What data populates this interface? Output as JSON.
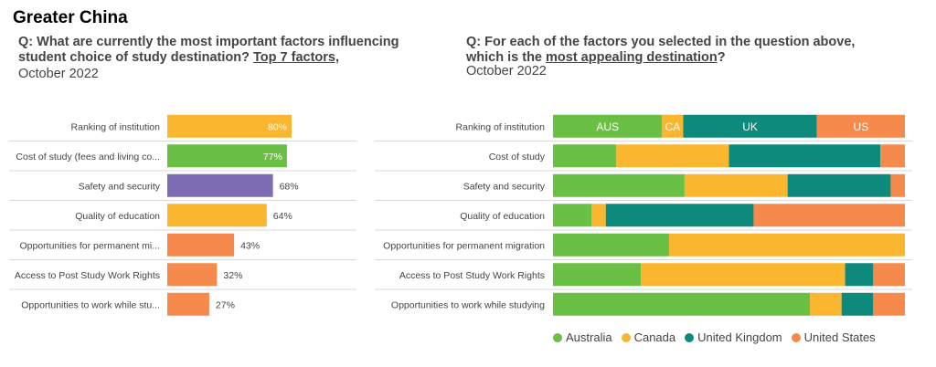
{
  "region": "Greater China",
  "q1": {
    "prefix": "Q: What are currently the most important factors influencing student choice of study destination? ",
    "underlined": "Top 7 factors,",
    "date": "October 2022"
  },
  "q2": {
    "prefix": "Q: For each of the factors you selected in the question above, which is the ",
    "underlined": "most appealing destination",
    "suffix": "?",
    "date": "October 2022"
  },
  "colors": {
    "australia": "#6abf45",
    "canada": "#fbb630",
    "uk": "#0e8a7d",
    "us": "#f68a4d",
    "purple": "#7d6bb3"
  },
  "chart_data": [
    {
      "type": "bar",
      "orientation": "horizontal",
      "categories": [
        "Ranking of institution",
        "Cost of study (fees and living co...",
        "Safety and security",
        "Quality of education",
        "Opportunities for permanent mi...",
        "Access to Post Study Work Rights",
        "Opportunities to work while stu..."
      ],
      "values": [
        80,
        77,
        68,
        64,
        43,
        32,
        27
      ],
      "value_labels": [
        "80%",
        "77%",
        "68%",
        "64%",
        "43%",
        "32%",
        "27%"
      ],
      "bar_colors": [
        "#fbb630",
        "#6abf45",
        "#7d6bb3",
        "#fbb630",
        "#f68a4d",
        "#f68a4d",
        "#f68a4d"
      ],
      "xlim": [
        0,
        100
      ]
    },
    {
      "type": "bar",
      "orientation": "horizontal",
      "stacked": "100%",
      "categories": [
        "Ranking of institution",
        "Cost of study",
        "Safety and security",
        "Quality of education",
        "Opportunities for permanent migration",
        "Access to Post Study Work Rights",
        "Opportunities to work while studying"
      ],
      "series": [
        {
          "name": "Australia",
          "short": "AUS",
          "values": [
            31,
            18,
            37,
            11,
            33,
            25,
            73
          ]
        },
        {
          "name": "Canada",
          "short": "CA",
          "values": [
            6,
            32,
            29,
            4,
            67,
            58,
            9
          ]
        },
        {
          "name": "United Kingdom",
          "short": "UK",
          "values": [
            38,
            43,
            29,
            42,
            0,
            8,
            9
          ]
        },
        {
          "name": "United States",
          "short": "US",
          "values": [
            25,
            7,
            4,
            43,
            0,
            9,
            9
          ]
        }
      ],
      "segment_labels_row": 0,
      "legend_position": "bottom"
    }
  ]
}
